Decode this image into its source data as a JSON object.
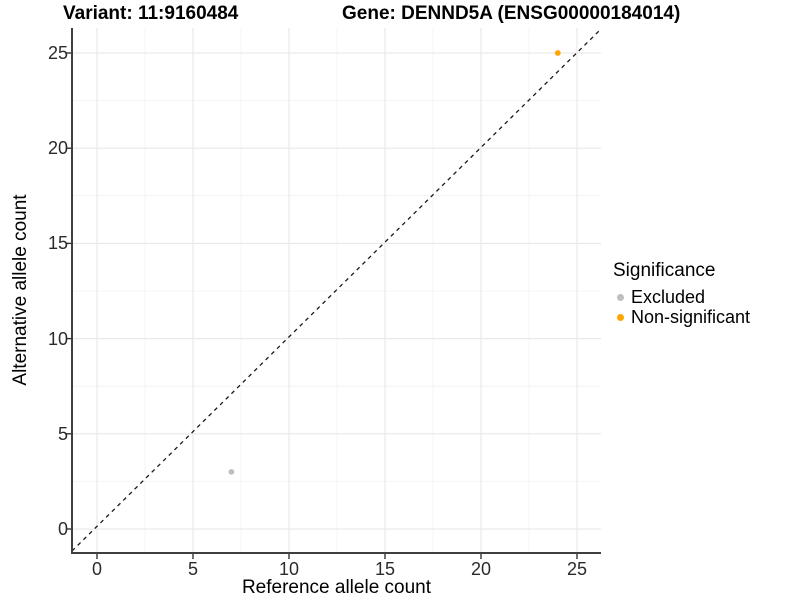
{
  "chart_data": {
    "type": "scatter",
    "titles": {
      "left": "Variant: 11:9160484",
      "right": "Gene: DENND5A (ENSG00000184014)"
    },
    "xlabel": "Reference allele count",
    "ylabel": "Alternative allele count",
    "x_ticks": [
      0,
      5,
      10,
      15,
      20,
      25
    ],
    "y_ticks": [
      0,
      5,
      10,
      15,
      20,
      25
    ],
    "x_minor_ticks": [
      2.5,
      7.5,
      12.5,
      17.5,
      22.5
    ],
    "y_minor_ticks": [
      2.5,
      7.5,
      12.5,
      17.5,
      22.5
    ],
    "xlim": [
      -1.15,
      26.25
    ],
    "ylim": [
      -1.25,
      26.3
    ],
    "grid": "major+minor",
    "identity_line": {
      "equation": "y = x",
      "style": "dashed",
      "color": "#1a1a1a"
    },
    "series": [
      {
        "name": "Excluded",
        "color": "#BEBEBE",
        "points": [
          [
            7,
            3
          ]
        ]
      },
      {
        "name": "Non-significant",
        "color": "#FFA500",
        "points": [
          [
            24,
            25
          ]
        ]
      }
    ],
    "legend": {
      "title": "Significance",
      "position": "right"
    },
    "colors": {
      "background": "#FFFFFF",
      "grid_major": "#E9E9E9",
      "grid_minor": "#F4F4F4",
      "axis_line": "#3F3F3F",
      "tick_mark": "#333333",
      "tick_label": "#2B2B2B"
    }
  }
}
